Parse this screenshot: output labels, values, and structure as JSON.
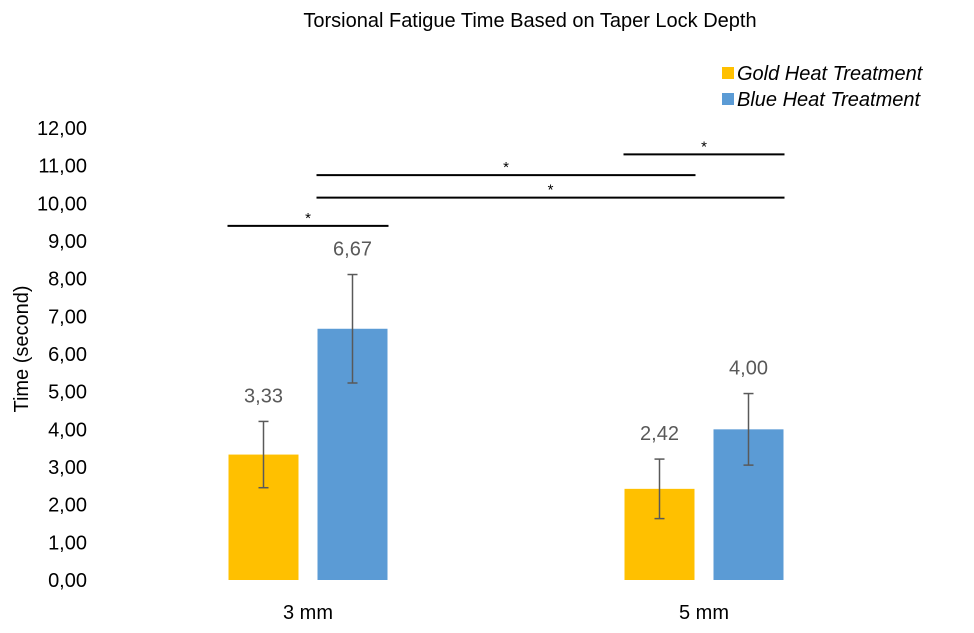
{
  "chart_data": {
    "type": "bar",
    "title": "Torsional Fatigue Time Based on Taper Lock Depth",
    "xlabel": "",
    "ylabel": "Time (second)",
    "categories": [
      "3 mm",
      "5 mm"
    ],
    "ylim": [
      0,
      12
    ],
    "ytick_step": 1,
    "yticks": [
      "0,00",
      "1,00",
      "2,00",
      "3,00",
      "4,00",
      "5,00",
      "6,00",
      "7,00",
      "8,00",
      "9,00",
      "10,00",
      "11,00",
      "12,00"
    ],
    "grid": false,
    "legend_position": "top-right",
    "series": [
      {
        "name": "Gold Heat Treatment",
        "color": "#ffc000",
        "values": [
          3.33,
          2.42
        ],
        "labels": [
          "3,33",
          "2,42"
        ],
        "error": [
          0.88,
          0.79
        ]
      },
      {
        "name": "Blue Heat Treatment",
        "color": "#5b9bd5",
        "values": [
          6.67,
          4.0
        ],
        "labels": [
          "6,67",
          "4,00"
        ],
        "error": [
          1.44,
          0.95
        ]
      }
    ],
    "significance": [
      {
        "label": "*",
        "y": 9.4,
        "from": [
          0,
          0
        ],
        "to": [
          0,
          1
        ]
      },
      {
        "label": "*",
        "y": 10.75,
        "from": [
          0,
          1
        ],
        "to": [
          1,
          0
        ]
      },
      {
        "label": "*",
        "y": 10.15,
        "from": [
          0,
          1
        ],
        "to": [
          1,
          1
        ]
      },
      {
        "label": "*",
        "y": 11.3,
        "from": [
          1,
          0
        ],
        "to": [
          1,
          1
        ]
      }
    ]
  }
}
